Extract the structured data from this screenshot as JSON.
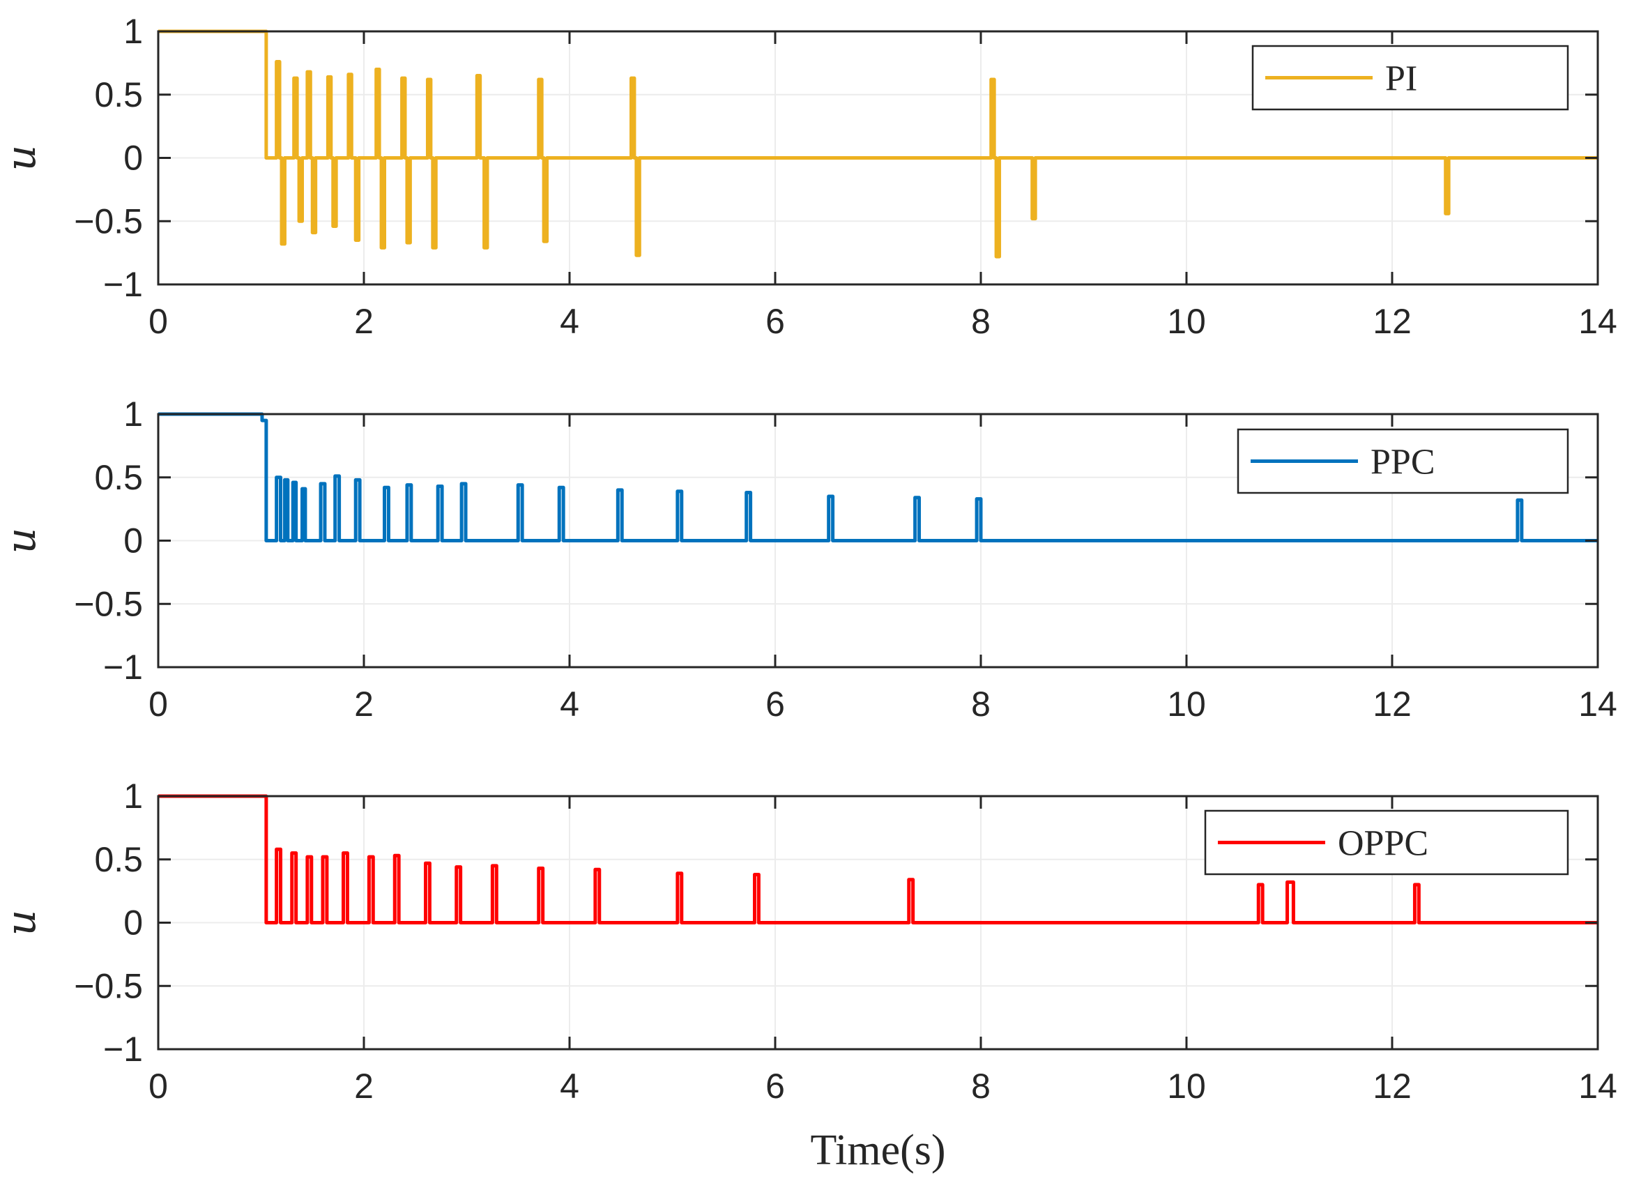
{
  "chart_data": [
    {
      "type": "line",
      "title": "",
      "xlabel": "",
      "ylabel": "u",
      "xlim": [
        0,
        14
      ],
      "ylim": [
        -1,
        1
      ],
      "xticks": [
        "0",
        "2",
        "4",
        "6",
        "8",
        "10",
        "12",
        "14"
      ],
      "yticks": [
        "1",
        "0.5",
        "0",
        "−0.5",
        "−1"
      ],
      "grid": true,
      "legend_position": "top-right",
      "series": [
        {
          "name": "PI",
          "color": "#EDB120",
          "initial": {
            "value": 1,
            "until": 1.05
          },
          "pulses": [
            [
              1.15,
              1.18,
              0.76
            ],
            [
              1.2,
              1.23,
              -0.68
            ],
            [
              1.32,
              1.35,
              0.63
            ],
            [
              1.37,
              1.4,
              -0.5
            ],
            [
              1.45,
              1.48,
              0.68
            ],
            [
              1.5,
              1.53,
              -0.59
            ],
            [
              1.65,
              1.68,
              0.64
            ],
            [
              1.7,
              1.73,
              -0.54
            ],
            [
              1.85,
              1.88,
              0.66
            ],
            [
              1.92,
              1.95,
              -0.65
            ],
            [
              2.12,
              2.15,
              0.7
            ],
            [
              2.17,
              2.2,
              -0.71
            ],
            [
              2.37,
              2.4,
              0.63
            ],
            [
              2.42,
              2.45,
              -0.67
            ],
            [
              2.62,
              2.65,
              0.62
            ],
            [
              2.67,
              2.7,
              -0.71
            ],
            [
              3.1,
              3.13,
              0.65
            ],
            [
              3.17,
              3.2,
              -0.71
            ],
            [
              3.7,
              3.73,
              0.62
            ],
            [
              3.75,
              3.78,
              -0.66
            ],
            [
              4.6,
              4.63,
              0.63
            ],
            [
              4.65,
              4.68,
              -0.77
            ],
            [
              8.1,
              8.13,
              0.62
            ],
            [
              8.15,
              8.18,
              -0.78
            ],
            [
              8.5,
              8.53,
              -0.48
            ],
            [
              12.52,
              12.55,
              -0.44
            ]
          ]
        }
      ]
    },
    {
      "type": "line",
      "title": "",
      "xlabel": "",
      "ylabel": "u",
      "xlim": [
        0,
        14
      ],
      "ylim": [
        -1,
        1
      ],
      "xticks": [
        "0",
        "2",
        "4",
        "6",
        "8",
        "10",
        "12",
        "14"
      ],
      "yticks": [
        "1",
        "0.5",
        "0",
        "−0.5",
        "−1"
      ],
      "grid": true,
      "legend_position": "top-right",
      "series": [
        {
          "name": "PPC",
          "color": "#0072BD",
          "initial": {
            "value": 1,
            "until": 1.05,
            "steps": [
              [
                0.98,
                1.0
              ],
              [
                1.01,
                0.95
              ]
            ]
          },
          "pulses": [
            [
              1.15,
              1.19,
              0.5
            ],
            [
              1.23,
              1.26,
              0.48
            ],
            [
              1.31,
              1.34,
              0.46
            ],
            [
              1.4,
              1.43,
              0.41
            ],
            [
              1.58,
              1.62,
              0.45
            ],
            [
              1.72,
              1.76,
              0.51
            ],
            [
              1.92,
              1.96,
              0.48
            ],
            [
              2.2,
              2.24,
              0.42
            ],
            [
              2.42,
              2.46,
              0.44
            ],
            [
              2.72,
              2.76,
              0.43
            ],
            [
              2.95,
              2.99,
              0.45
            ],
            [
              3.5,
              3.54,
              0.44
            ],
            [
              3.9,
              3.94,
              0.42
            ],
            [
              4.47,
              4.51,
              0.4
            ],
            [
              5.05,
              5.09,
              0.39
            ],
            [
              5.72,
              5.76,
              0.38
            ],
            [
              6.52,
              6.56,
              0.35
            ],
            [
              7.36,
              7.4,
              0.34
            ],
            [
              7.96,
              8.0,
              0.33
            ],
            [
              13.22,
              13.26,
              0.32
            ]
          ]
        }
      ]
    },
    {
      "type": "line",
      "title": "",
      "xlabel": "Time(s)",
      "ylabel": "u",
      "xlim": [
        0,
        14
      ],
      "ylim": [
        -1,
        1
      ],
      "xticks": [
        "0",
        "2",
        "4",
        "6",
        "8",
        "10",
        "12",
        "14"
      ],
      "yticks": [
        "1",
        "0.5",
        "0",
        "−0.5",
        "−1"
      ],
      "grid": true,
      "legend_position": "top-right",
      "series": [
        {
          "name": "OPPC",
          "color": "#FF0000",
          "initial": {
            "value": 1,
            "until": 1.05
          },
          "pulses": [
            [
              1.15,
              1.19,
              0.58
            ],
            [
              1.3,
              1.34,
              0.55
            ],
            [
              1.45,
              1.49,
              0.52
            ],
            [
              1.6,
              1.64,
              0.52
            ],
            [
              1.8,
              1.84,
              0.55
            ],
            [
              2.05,
              2.09,
              0.52
            ],
            [
              2.3,
              2.34,
              0.53
            ],
            [
              2.6,
              2.64,
              0.47
            ],
            [
              2.9,
              2.94,
              0.44
            ],
            [
              3.25,
              3.29,
              0.45
            ],
            [
              3.7,
              3.74,
              0.43
            ],
            [
              4.25,
              4.29,
              0.42
            ],
            [
              5.05,
              5.09,
              0.39
            ],
            [
              5.8,
              5.84,
              0.38
            ],
            [
              7.3,
              7.34,
              0.34
            ],
            [
              10.7,
              10.74,
              0.3
            ],
            [
              10.98,
              11.04,
              0.32
            ],
            [
              12.22,
              12.26,
              0.3
            ]
          ]
        }
      ]
    }
  ]
}
